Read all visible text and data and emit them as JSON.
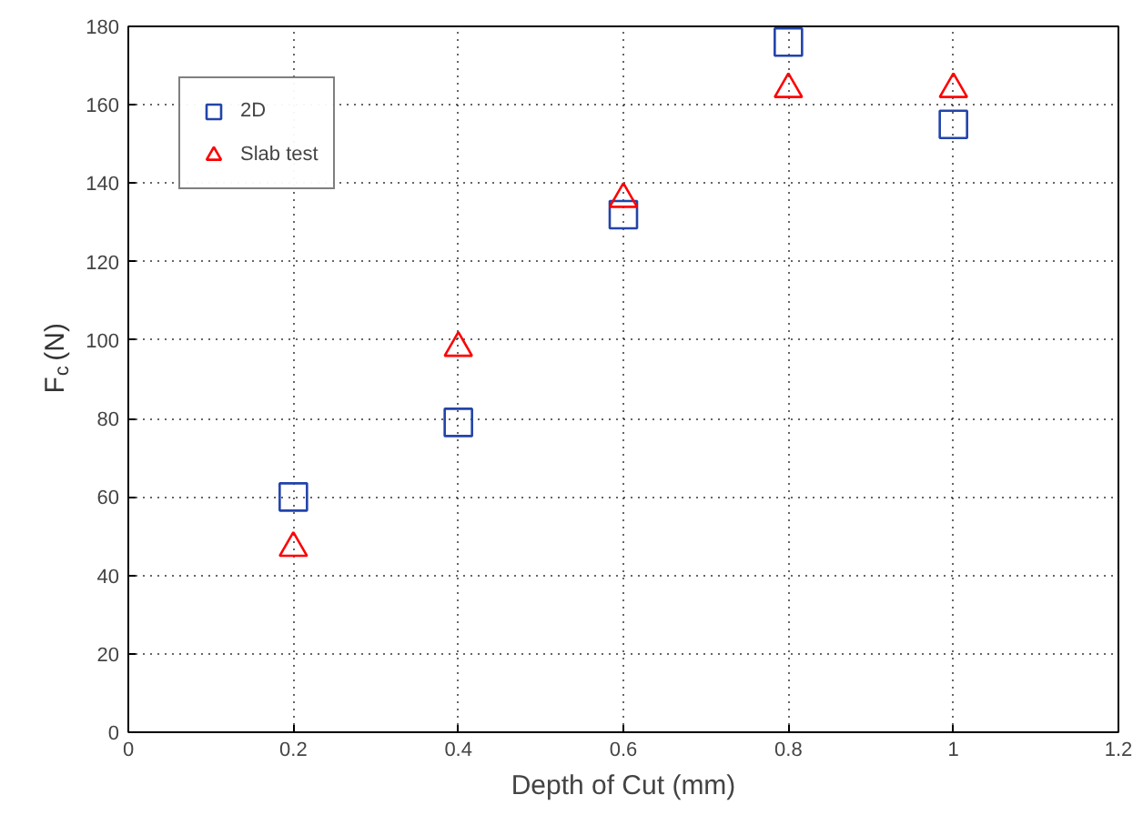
{
  "chart_data": {
    "type": "scatter",
    "xlabel": "Depth of Cut (mm)",
    "ylabel": "F$_{c}$ (N)",
    "x": [
      0.2,
      0.4,
      0.6,
      0.8,
      1.0
    ],
    "series": [
      {
        "name": "2D",
        "color": "#2244aa",
        "marker": "square",
        "values": [
          60,
          79,
          132,
          176,
          155
        ]
      },
      {
        "name": "Slab test",
        "color": "#ff0000",
        "marker": "triangle",
        "values": [
          47,
          98,
          136,
          164,
          164
        ]
      }
    ],
    "xlim": [
      0,
      1.2
    ],
    "xticks": [
      0,
      0.2,
      0.4,
      0.6,
      0.8,
      1,
      1.2
    ],
    "ylim": [
      0,
      180
    ],
    "yticks": [
      0,
      20,
      40,
      60,
      80,
      100,
      120,
      140,
      160,
      180
    ],
    "grid": true,
    "legend": "top left"
  }
}
